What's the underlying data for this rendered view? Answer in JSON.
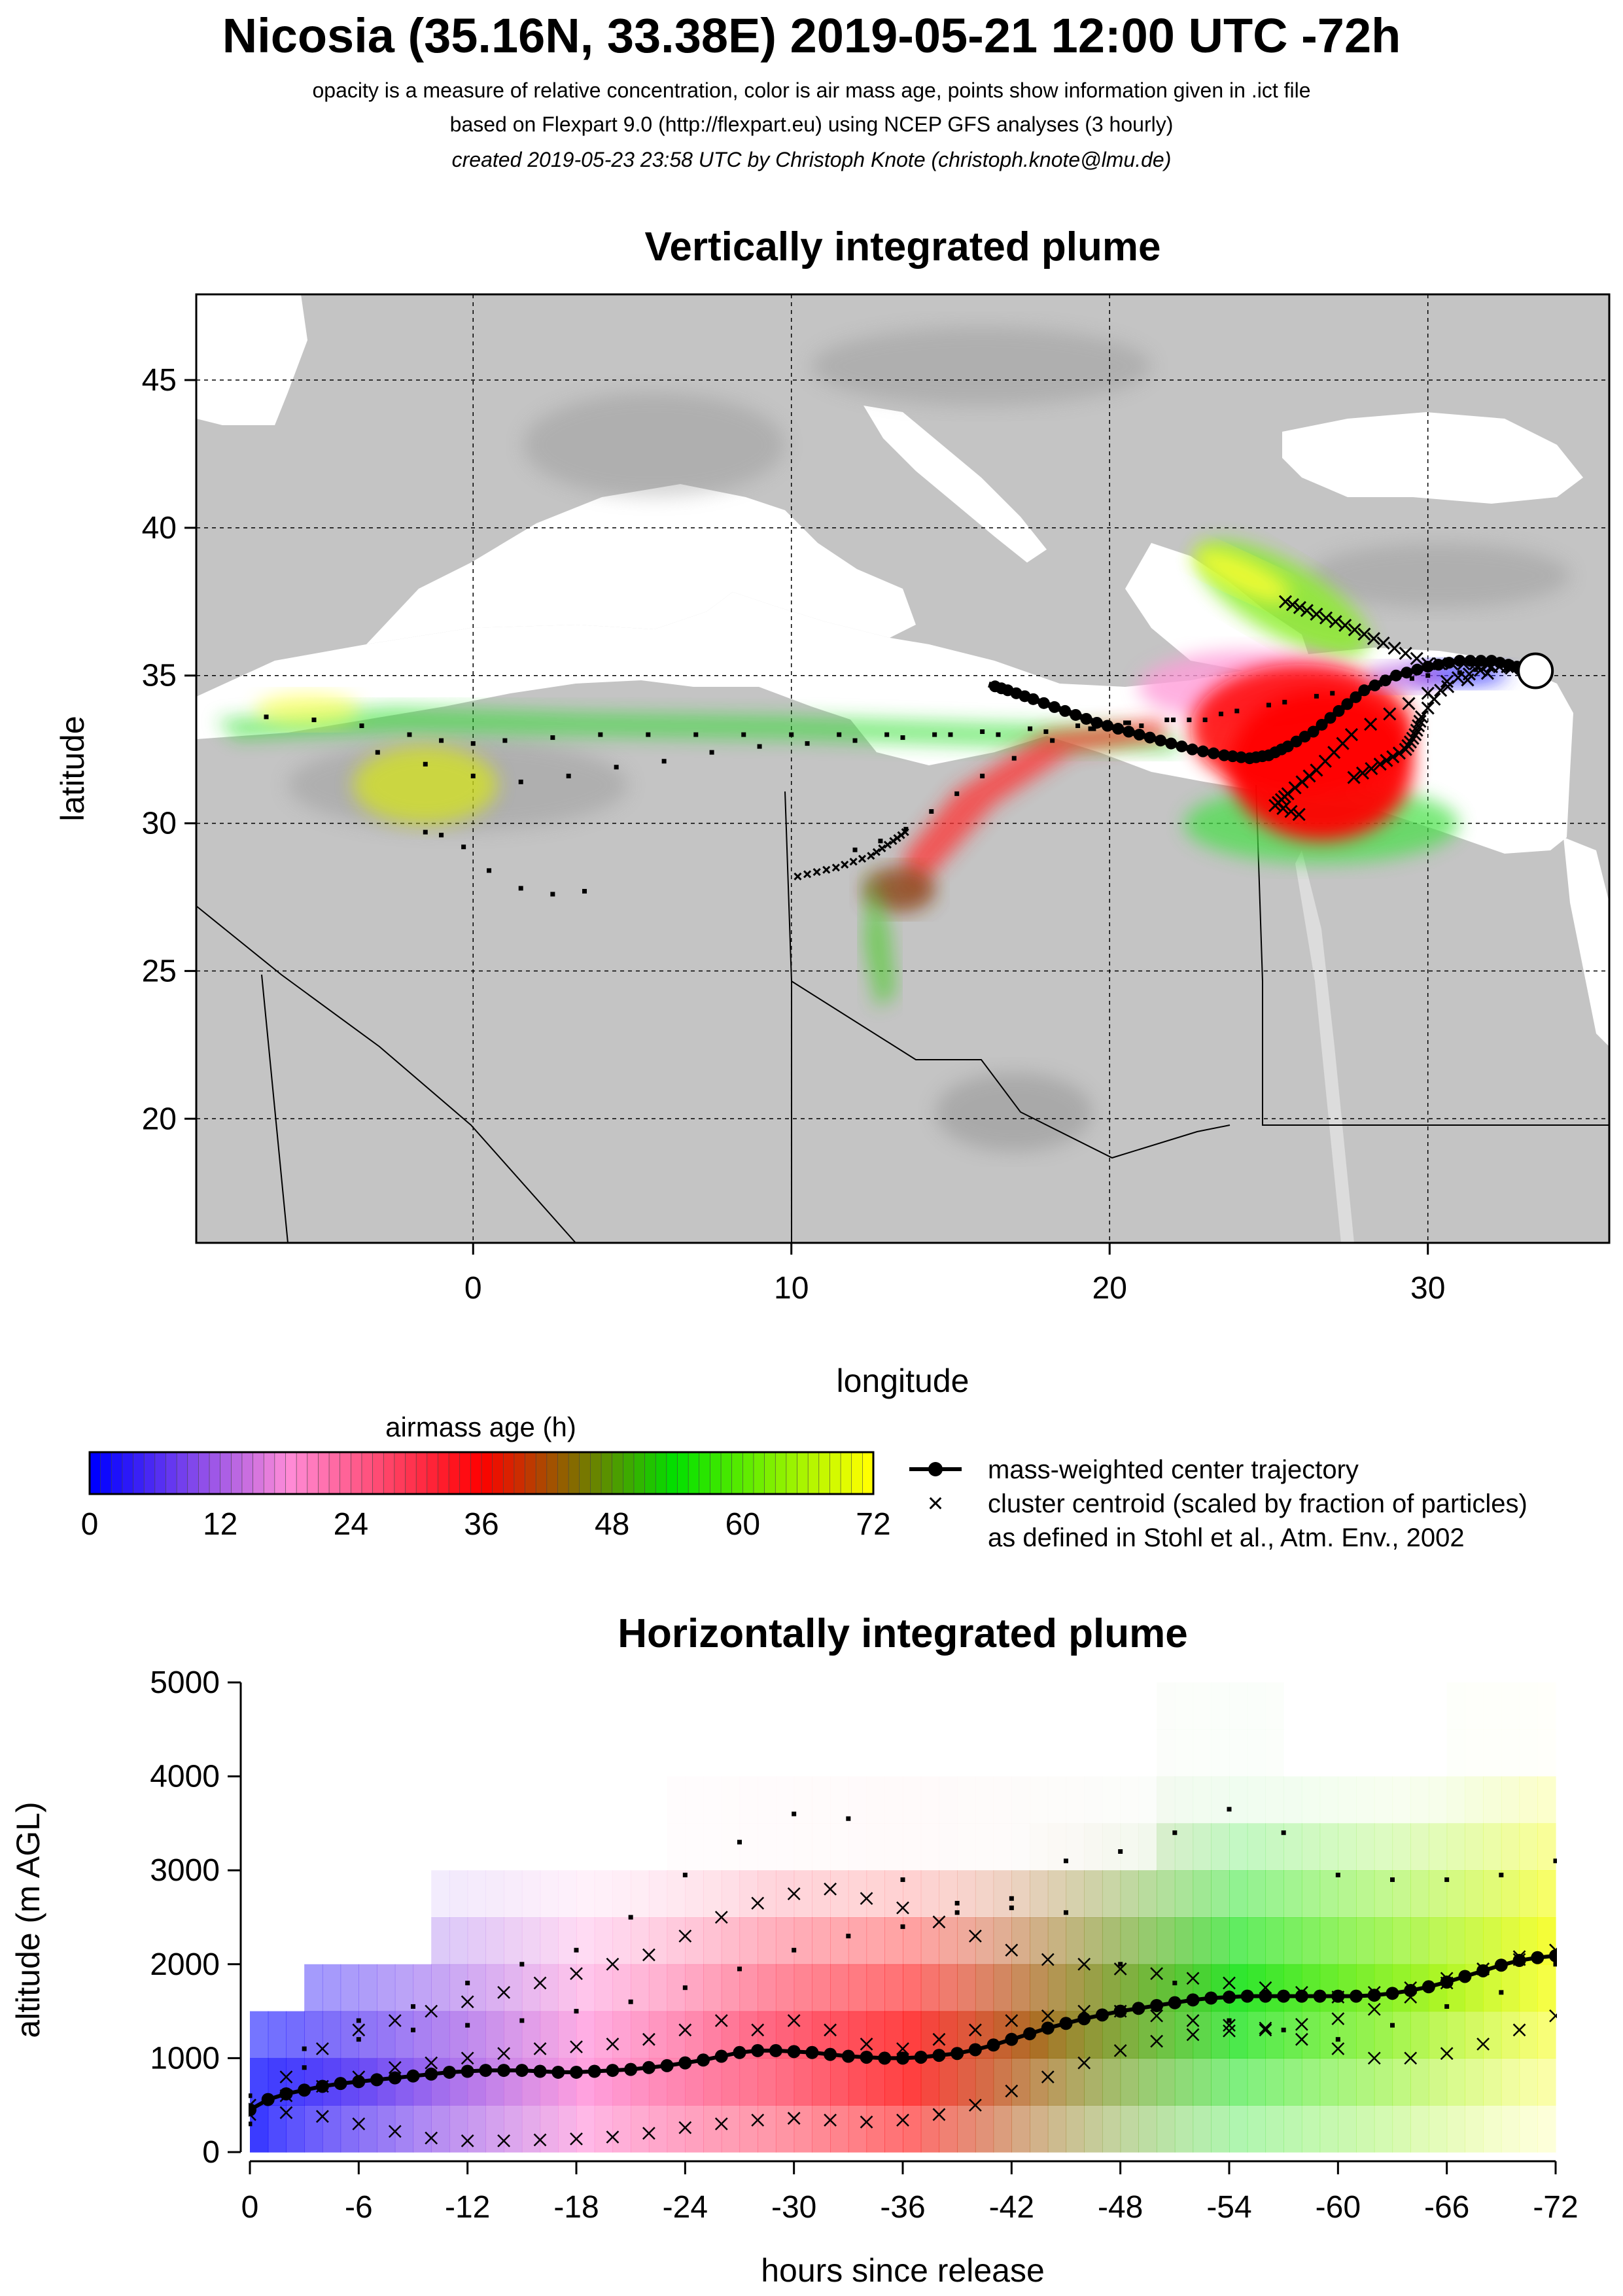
{
  "header": {
    "title": "Nicosia (35.16N, 33.38E) 2019-05-21 12:00 UTC -72h",
    "subtitle_1": "opacity is a measure of relative concentration, color is air mass age, points show information given in .ict file",
    "subtitle_2": "based on Flexpart 9.0 (http://flexpart.eu) using NCEP GFS analyses (3 hourly)",
    "subtitle_3": "created 2019-05-23 23:58 UTC by Christoph Knote (christoph.knote@lmu.de)"
  },
  "colors": {
    "age_ramp": [
      "#0000ff",
      "#ff8cd8",
      "#ff0000",
      "#00e000",
      "#ffff00"
    ],
    "land": "#c4c4c4",
    "sea": "#ffffff",
    "frame": "#000000"
  },
  "legend": {
    "colorbar_title": "airmass age (h)",
    "colorbar_ticks": [
      "0",
      "12",
      "24",
      "36",
      "48",
      "60",
      "72"
    ],
    "line_entry": "mass-weighted center trajectory",
    "cross_entry": "cluster centroid (scaled by fraction of particles)",
    "cross_entry_2": "as defined in Stohl et al., Atm. Env., 2002"
  },
  "chart_data": [
    {
      "type": "scatter",
      "title": "Vertically integrated plume",
      "xlabel": "longitude",
      "ylabel": "latitude",
      "xlim": [
        -8.7,
        35.7
      ],
      "ylim": [
        15.8,
        47.9
      ],
      "x_ticks": [
        "0",
        "10",
        "20",
        "30"
      ],
      "x_tick_values": [
        0,
        10,
        20,
        30
      ],
      "y_ticks": [
        "20",
        "25",
        "30",
        "35",
        "40",
        "45"
      ],
      "y_tick_values": [
        20,
        25,
        30,
        35,
        40,
        45
      ],
      "grid": true,
      "release_point": {
        "lon": 33.38,
        "lat": 35.16
      },
      "center_trajectory": {
        "lon": [
          33.4,
          32.8,
          32.0,
          31.0,
          30.0,
          29.0,
          28.0,
          27.2,
          26.4,
          25.6,
          25.0,
          24.4,
          23.6,
          22.6,
          21.6,
          20.6,
          19.6,
          18.6,
          17.6,
          16.8,
          16.2
        ],
        "lat": [
          35.2,
          35.3,
          35.5,
          35.5,
          35.3,
          35.0,
          34.5,
          33.8,
          33.1,
          32.6,
          32.3,
          32.2,
          32.3,
          32.5,
          32.8,
          33.1,
          33.4,
          33.8,
          34.2,
          34.5,
          34.7
        ]
      },
      "cluster_centroids": [
        {
          "lon": [
            33.0,
            31.5,
            30.0,
            28.6,
            27.4,
            26.2,
            25.3
          ],
          "lat": [
            35.2,
            35.4,
            35.4,
            36.1,
            36.7,
            37.2,
            37.6
          ]
        },
        {
          "lon": [
            32.0,
            30.6,
            29.8,
            29.6,
            29.3,
            28.5,
            27.4
          ],
          "lat": [
            35.3,
            34.8,
            33.6,
            33.0,
            32.5,
            32.0,
            31.4
          ]
        },
        {
          "lon": [
            32.5,
            30.0,
            27.6,
            26.5,
            25.6,
            25.2,
            26.2
          ],
          "lat": [
            35.3,
            34.4,
            33.0,
            31.8,
            31.0,
            30.6,
            30.2
          ]
        },
        {
          "lon": [
            10.2,
            11.4,
            12.5,
            13.2,
            13.7
          ],
          "lat": [
            28.2,
            28.5,
            28.9,
            29.4,
            29.8
          ]
        }
      ],
      "trajectory_points": [
        {
          "lon": [
            -6.5,
            -5.0,
            -3.5,
            -2.0,
            -1.0,
            0.0,
            1.0,
            2.5,
            4.0,
            5.5,
            7.0,
            8.5,
            10.0,
            11.5,
            13.0,
            14.5,
            16.0,
            17.5,
            19.0,
            20.5,
            22.0,
            23.5,
            25.0,
            26.5,
            28.0,
            29.5,
            31.0,
            32.5
          ],
          "lat": [
            33.6,
            33.5,
            33.3,
            33.0,
            32.8,
            32.7,
            32.8,
            32.9,
            33.0,
            33.0,
            33.0,
            33.0,
            33.0,
            33.0,
            33.0,
            33.0,
            33.1,
            33.2,
            33.3,
            33.4,
            33.5,
            33.7,
            34.0,
            34.3,
            34.6,
            34.9,
            35.1,
            35.2
          ]
        },
        {
          "lon": [
            -3.0,
            -1.5,
            0.0,
            1.5,
            3.0,
            4.5,
            6.0,
            7.5,
            9.0,
            10.5,
            12.0,
            13.5,
            15.0,
            16.5,
            18.0,
            19.5,
            21.0,
            22.5,
            24.0,
            25.5,
            27.0,
            28.5,
            30.0,
            31.5
          ],
          "lat": [
            32.4,
            32.0,
            31.6,
            31.4,
            31.6,
            31.9,
            32.1,
            32.4,
            32.6,
            32.7,
            32.8,
            32.9,
            33.0,
            33.0,
            33.1,
            33.2,
            33.3,
            33.5,
            33.8,
            34.1,
            34.4,
            34.7,
            35.0,
            35.2
          ]
        },
        {
          "lon": [
            -1.5,
            -1.0,
            -0.3,
            0.5,
            1.5,
            2.5,
            3.5
          ],
          "lat": [
            29.7,
            29.6,
            29.2,
            28.4,
            27.8,
            27.6,
            27.7
          ]
        },
        {
          "lon": [
            12.0,
            12.8,
            13.6,
            14.4,
            15.2,
            16.0,
            17.0,
            18.2,
            19.4,
            20.6,
            21.8,
            23.0
          ],
          "lat": [
            29.1,
            29.4,
            29.8,
            30.4,
            31.0,
            31.6,
            32.2,
            32.8,
            33.2,
            33.4,
            33.5,
            33.5
          ]
        }
      ]
    },
    {
      "type": "scatter",
      "title": "Horizontally integrated plume",
      "xlabel": "hours since release",
      "ylabel": "altitude (m AGL)",
      "xlim": [
        0,
        -72
      ],
      "ylim": [
        0,
        5000
      ],
      "x_ticks": [
        "0",
        "-6",
        "-12",
        "-18",
        "-24",
        "-30",
        "-36",
        "-42",
        "-48",
        "-54",
        "-60",
        "-66",
        "-72"
      ],
      "x_tick_values": [
        0,
        -6,
        -12,
        -18,
        -24,
        -30,
        -36,
        -42,
        -48,
        -54,
        -60,
        -66,
        -72
      ],
      "y_ticks": [
        "0",
        "1000",
        "2000",
        "3000",
        "4000",
        "5000"
      ],
      "y_tick_values": [
        0,
        1000,
        2000,
        3000,
        4000,
        5000
      ],
      "grid": false,
      "center_altitude": {
        "hours": [
          0,
          -1,
          -2,
          -3,
          -4,
          -5,
          -6,
          -7,
          -8,
          -9,
          -10,
          -11,
          -12,
          -13,
          -14,
          -15,
          -16,
          -17,
          -18,
          -19,
          -20,
          -21,
          -22,
          -23,
          -24,
          -25,
          -26,
          -27,
          -28,
          -29,
          -30,
          -31,
          -32,
          -33,
          -34,
          -35,
          -36,
          -37,
          -38,
          -39,
          -40,
          -41,
          -42,
          -43,
          -44,
          -45,
          -46,
          -47,
          -48,
          -49,
          -50,
          -51,
          -52,
          -53,
          -54,
          -55,
          -56,
          -57,
          -58,
          -59,
          -60,
          -61,
          -62,
          -63,
          -64,
          -65,
          -66,
          -67,
          -68,
          -69,
          -70,
          -71,
          -72
        ],
        "altitude": [
          450,
          560,
          620,
          660,
          700,
          730,
          750,
          770,
          790,
          810,
          830,
          850,
          860,
          870,
          870,
          870,
          860,
          850,
          850,
          860,
          870,
          880,
          900,
          920,
          950,
          980,
          1020,
          1060,
          1080,
          1080,
          1070,
          1060,
          1040,
          1020,
          1010,
          1000,
          1000,
          1010,
          1030,
          1050,
          1090,
          1140,
          1200,
          1260,
          1320,
          1370,
          1420,
          1460,
          1500,
          1530,
          1560,
          1590,
          1620,
          1640,
          1650,
          1660,
          1660,
          1660,
          1660,
          1660,
          1660,
          1660,
          1670,
          1690,
          1720,
          1760,
          1810,
          1870,
          1930,
          1990,
          2040,
          2070,
          2090
        ]
      },
      "centroid_series": [
        {
          "hours": [
            0,
            -2,
            -4,
            -6,
            -8,
            -10,
            -12,
            -14,
            -16,
            -18,
            -20,
            -22,
            -24,
            -26,
            -28,
            -30,
            -32,
            -34,
            -36,
            -38,
            -40,
            -42,
            -44,
            -46,
            -48,
            -50,
            -52,
            -54,
            -56,
            -58,
            -60,
            -62,
            -64,
            -66,
            -68,
            -70,
            -72
          ],
          "altitude": [
            400,
            420,
            380,
            300,
            220,
            150,
            120,
            120,
            130,
            140,
            160,
            200,
            260,
            300,
            340,
            360,
            340,
            320,
            340,
            400,
            500,
            650,
            800,
            950,
            1080,
            1180,
            1250,
            1290,
            1320,
            1360,
            1420,
            1520,
            1650,
            1800,
            1950,
            2080,
            2150
          ]
        },
        {
          "hours": [
            0,
            -2,
            -4,
            -6,
            -8,
            -10,
            -12,
            -14,
            -16,
            -18,
            -20,
            -22,
            -24,
            -26,
            -28,
            -30,
            -32,
            -34,
            -36,
            -38,
            -40,
            -42,
            -44,
            -46,
            -48,
            -50,
            -52,
            -54,
            -56,
            -58,
            -60,
            -62,
            -64,
            -66,
            -68,
            -70,
            -72
          ],
          "altitude": [
            500,
            600,
            700,
            800,
            900,
            950,
            1000,
            1050,
            1100,
            1120,
            1150,
            1200,
            1300,
            1400,
            1300,
            1400,
            1300,
            1150,
            1100,
            1200,
            1300,
            1400,
            1450,
            1500,
            1500,
            1450,
            1400,
            1350,
            1300,
            1200,
            1100,
            1000,
            1000,
            1050,
            1150,
            1300,
            1450
          ]
        },
        {
          "hours": [
            0,
            -2,
            -4,
            -6,
            -8,
            -10,
            -12,
            -14,
            -16,
            -18,
            -20,
            -22,
            -24,
            -26,
            -28,
            -30,
            -32,
            -34,
            -36,
            -38,
            -40,
            -42,
            -44,
            -46,
            -48,
            -50,
            -52,
            -54,
            -56,
            -58,
            -60,
            -62,
            -64,
            -66,
            -68,
            -70,
            -72
          ],
          "altitude": [
            500,
            800,
            1100,
            1300,
            1400,
            1500,
            1600,
            1700,
            1800,
            1900,
            2000,
            2100,
            2300,
            2500,
            2650,
            2750,
            2800,
            2700,
            2600,
            2450,
            2300,
            2150,
            2050,
            2000,
            1950,
            1900,
            1850,
            1800,
            1750,
            1700,
            1650,
            1700,
            1750,
            1850,
            1950,
            2050,
            2150
          ]
        }
      ],
      "dot_series": [
        {
          "hours": [
            0,
            -3,
            -6,
            -9,
            -12,
            -15,
            -18,
            -21,
            -24,
            -27,
            -30,
            -33,
            -36,
            -39,
            -42,
            -45,
            -48,
            -51,
            -54,
            -57,
            -60,
            -63,
            -66,
            -69,
            -72
          ],
          "altitude": [
            600,
            1100,
            1400,
            1550,
            1800,
            2000,
            2150,
            2500,
            2950,
            3300,
            3600,
            3550,
            2900,
            2650,
            2700,
            3100,
            3200,
            3400,
            3650,
            3400,
            2950,
            2900,
            2900,
            2950,
            3100
          ]
        },
        {
          "hours": [
            0,
            -3,
            -6,
            -9,
            -12,
            -15,
            -18,
            -21,
            -24,
            -27,
            -30,
            -33,
            -36,
            -39,
            -42,
            -45,
            -48,
            -51,
            -54,
            -57,
            -60,
            -63,
            -66,
            -69,
            -72
          ],
          "altitude": [
            300,
            900,
            1200,
            1300,
            1350,
            1400,
            1500,
            1600,
            1750,
            1950,
            2150,
            2300,
            2400,
            2550,
            2600,
            2550,
            2000,
            1800,
            1400,
            1300,
            1200,
            1350,
            1550,
            1700,
            2000
          ]
        }
      ]
    }
  ]
}
